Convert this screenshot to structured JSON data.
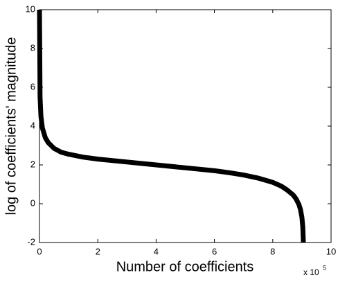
{
  "chart_data": {
    "type": "line",
    "xlabel": "Number of coefficients",
    "ylabel": "log of coefficients' magnitude",
    "x_multiplier": "x 10",
    "x_multiplier_exponent": "5",
    "x": [
      0,
      0.02,
      0.05,
      0.1,
      0.2,
      0.3,
      0.5,
      0.75,
      1,
      1.5,
      2,
      3,
      4,
      5,
      6,
      6.5,
      7,
      7.5,
      8,
      8.3,
      8.5,
      8.7,
      8.8,
      8.9,
      8.95,
      9,
      9.03,
      9.05
    ],
    "series": [
      {
        "color": "#000000",
        "values": [
          10,
          5.5,
          4.5,
          3.9,
          3.4,
          3.15,
          2.85,
          2.65,
          2.55,
          2.4,
          2.3,
          2.15,
          2.0,
          1.85,
          1.7,
          1.6,
          1.48,
          1.32,
          1.1,
          0.9,
          0.7,
          0.45,
          0.25,
          -0.05,
          -0.3,
          -0.7,
          -1.2,
          -2
        ]
      }
    ],
    "xlim": [
      0,
      10
    ],
    "ylim": [
      -2,
      10
    ],
    "xticks": [
      0,
      2,
      4,
      6,
      8,
      10
    ],
    "yticks": [
      -2,
      0,
      2,
      4,
      6,
      8,
      10
    ],
    "grid": false
  }
}
